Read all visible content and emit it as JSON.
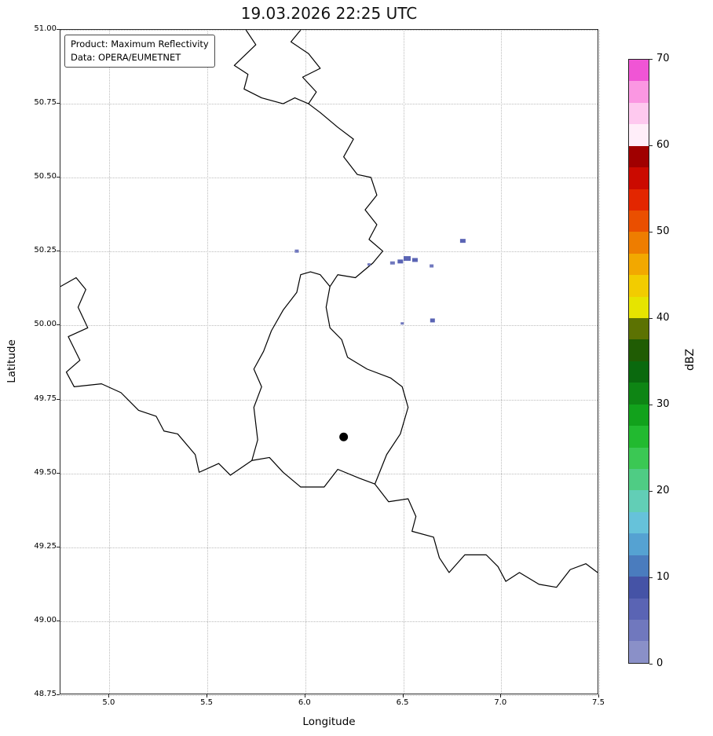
{
  "chart_data": {
    "type": "heatmap",
    "title": "19.03.2026 22:25 UTC",
    "annotations": [
      "Product: Maximum Reflectivity",
      "Data: OPERA/EUMETNET"
    ],
    "xlabel": "Longitude",
    "ylabel": "Latitude",
    "xlim": [
      4.75,
      7.5
    ],
    "ylim": [
      48.75,
      51.0
    ],
    "grid": {
      "style": "dotted",
      "color": "#bcbcbc"
    },
    "x_ticks": [
      {
        "v": 5.0,
        "label": "5.0"
      },
      {
        "v": 5.5,
        "label": "5.5"
      },
      {
        "v": 6.0,
        "label": "6.0"
      },
      {
        "v": 6.5,
        "label": "6.5"
      },
      {
        "v": 7.0,
        "label": "7.0"
      },
      {
        "v": 7.5,
        "label": "7.5"
      }
    ],
    "y_ticks": [
      {
        "v": 51.0,
        "label": "51.00"
      },
      {
        "v": 50.75,
        "label": "50.75"
      },
      {
        "v": 50.5,
        "label": "50.50"
      },
      {
        "v": 50.25,
        "label": "50.25"
      },
      {
        "v": 50.0,
        "label": "50.00"
      },
      {
        "v": 49.75,
        "label": "49.75"
      },
      {
        "v": 49.5,
        "label": "49.50"
      },
      {
        "v": 49.25,
        "label": "49.25"
      },
      {
        "v": 49.0,
        "label": "49.00"
      },
      {
        "v": 48.75,
        "label": "48.75"
      }
    ],
    "colorbar": {
      "label": "dBZ",
      "position": "right",
      "min": 0,
      "max": 70,
      "ticks": [
        {
          "v": 70,
          "label": "70"
        },
        {
          "v": 60,
          "label": "60"
        },
        {
          "v": 50,
          "label": "50"
        },
        {
          "v": 40,
          "label": "40"
        },
        {
          "v": 30,
          "label": "30"
        },
        {
          "v": 20,
          "label": "20"
        },
        {
          "v": 10,
          "label": "10"
        },
        {
          "v": 0,
          "label": "0"
        }
      ],
      "segment_step_dbz": 2.5,
      "segment_colors_bottom_to_top": [
        "#8a90c8",
        "#7078be",
        "#5a64b4",
        "#4553a6",
        "#4a7cbe",
        "#55a2d2",
        "#66c2da",
        "#62ceb6",
        "#4fcc84",
        "#3bc854",
        "#22ba30",
        "#12a21c",
        "#0e8514",
        "#0a690e",
        "#205c04",
        "#5c7202",
        "#e6e400",
        "#f2cc00",
        "#f2a800",
        "#ee7d00",
        "#ea4f00",
        "#e32600",
        "#cb0a00",
        "#a00000",
        "#ffeef9",
        "#fec9ef",
        "#fb97e2",
        "#f055d5"
      ]
    },
    "radar_site_marker": {
      "lon": 6.2,
      "lat": 49.62,
      "color": "#000000"
    },
    "echoes": [
      {
        "lon": 5.96,
        "lat": 50.25,
        "dbz": 4,
        "w": 5,
        "h": 4
      },
      {
        "lon": 6.81,
        "lat": 50.285,
        "dbz": 5,
        "w": 7,
        "h": 5
      },
      {
        "lon": 6.33,
        "lat": 50.205,
        "dbz": 3,
        "w": 4,
        "h": 3
      },
      {
        "lon": 6.45,
        "lat": 50.21,
        "dbz": 4,
        "w": 6,
        "h": 4
      },
      {
        "lon": 6.49,
        "lat": 50.215,
        "dbz": 5,
        "w": 7,
        "h": 5
      },
      {
        "lon": 6.525,
        "lat": 50.225,
        "dbz": 6,
        "w": 9,
        "h": 6
      },
      {
        "lon": 6.565,
        "lat": 50.22,
        "dbz": 5,
        "w": 7,
        "h": 5
      },
      {
        "lon": 6.65,
        "lat": 50.2,
        "dbz": 3,
        "w": 5,
        "h": 4
      },
      {
        "lon": 6.655,
        "lat": 50.015,
        "dbz": 5,
        "w": 6,
        "h": 5
      },
      {
        "lon": 6.5,
        "lat": 50.005,
        "dbz": 3,
        "w": 4,
        "h": 3
      }
    ],
    "border_polylines_lon_lat": [
      [
        [
          5.7,
          51.0
        ],
        [
          5.75,
          50.95
        ],
        [
          5.64,
          50.88
        ],
        [
          5.71,
          50.85
        ],
        [
          5.69,
          50.8
        ],
        [
          5.78,
          50.77
        ],
        [
          5.89,
          50.75
        ],
        [
          5.95,
          50.77
        ],
        [
          6.02,
          50.75
        ]
      ],
      [
        [
          5.98,
          51.0
        ],
        [
          5.93,
          50.96
        ],
        [
          6.02,
          50.92
        ],
        [
          6.08,
          50.87
        ],
        [
          5.99,
          50.84
        ],
        [
          6.06,
          50.79
        ],
        [
          6.02,
          50.75
        ]
      ],
      [
        [
          6.02,
          50.75
        ],
        [
          6.08,
          50.72
        ],
        [
          6.17,
          50.67
        ],
        [
          6.25,
          50.63
        ],
        [
          6.2,
          50.57
        ],
        [
          6.27,
          50.51
        ],
        [
          6.34,
          50.5
        ],
        [
          6.37,
          50.44
        ],
        [
          6.31,
          50.39
        ],
        [
          6.37,
          50.34
        ],
        [
          6.33,
          50.29
        ],
        [
          6.4,
          50.25
        ],
        [
          6.35,
          50.21
        ],
        [
          6.26,
          50.16
        ],
        [
          6.17,
          50.17
        ],
        [
          6.13,
          50.13
        ]
      ],
      [
        [
          6.13,
          50.13
        ],
        [
          6.11,
          50.06
        ],
        [
          6.13,
          49.99
        ],
        [
          6.19,
          49.95
        ],
        [
          6.22,
          49.89
        ],
        [
          6.32,
          49.85
        ],
        [
          6.44,
          49.82
        ],
        [
          6.5,
          49.79
        ],
        [
          6.53,
          49.72
        ],
        [
          6.49,
          49.63
        ],
        [
          6.42,
          49.56
        ],
        [
          6.36,
          49.46
        ],
        [
          6.28,
          49.48
        ],
        [
          6.17,
          49.51
        ],
        [
          6.1,
          49.45
        ],
        [
          5.98,
          49.45
        ],
        [
          5.89,
          49.5
        ],
        [
          5.82,
          49.55
        ],
        [
          5.73,
          49.54
        ],
        [
          5.76,
          49.61
        ],
        [
          5.74,
          49.72
        ],
        [
          5.78,
          49.79
        ],
        [
          5.74,
          49.85
        ],
        [
          5.79,
          49.91
        ],
        [
          5.83,
          49.98
        ],
        [
          5.89,
          50.05
        ],
        [
          5.96,
          50.11
        ],
        [
          5.98,
          50.17
        ],
        [
          6.03,
          50.18
        ],
        [
          6.08,
          50.17
        ],
        [
          6.13,
          50.13
        ]
      ],
      [
        [
          6.36,
          49.46
        ],
        [
          6.43,
          49.4
        ],
        [
          6.53,
          49.41
        ],
        [
          6.57,
          49.35
        ],
        [
          6.55,
          49.3
        ],
        [
          6.66,
          49.28
        ],
        [
          6.69,
          49.21
        ],
        [
          6.74,
          49.16
        ],
        [
          6.82,
          49.22
        ],
        [
          6.93,
          49.22
        ],
        [
          6.99,
          49.18
        ],
        [
          7.03,
          49.13
        ],
        [
          7.1,
          49.16
        ],
        [
          7.2,
          49.12
        ],
        [
          7.29,
          49.11
        ],
        [
          7.36,
          49.17
        ],
        [
          7.44,
          49.19
        ],
        [
          7.5,
          49.16
        ]
      ],
      [
        [
          4.75,
          50.13
        ],
        [
          4.83,
          50.16
        ],
        [
          4.88,
          50.12
        ],
        [
          4.84,
          50.06
        ],
        [
          4.89,
          49.99
        ],
        [
          4.79,
          49.96
        ],
        [
          4.85,
          49.88
        ],
        [
          4.78,
          49.84
        ],
        [
          4.82,
          49.79
        ],
        [
          4.96,
          49.8
        ],
        [
          5.06,
          49.77
        ],
        [
          5.15,
          49.71
        ],
        [
          5.24,
          49.69
        ],
        [
          5.28,
          49.64
        ],
        [
          5.35,
          49.63
        ],
        [
          5.44,
          49.56
        ],
        [
          5.46,
          49.5
        ],
        [
          5.56,
          49.53
        ],
        [
          5.62,
          49.49
        ],
        [
          5.73,
          49.54
        ]
      ]
    ]
  }
}
